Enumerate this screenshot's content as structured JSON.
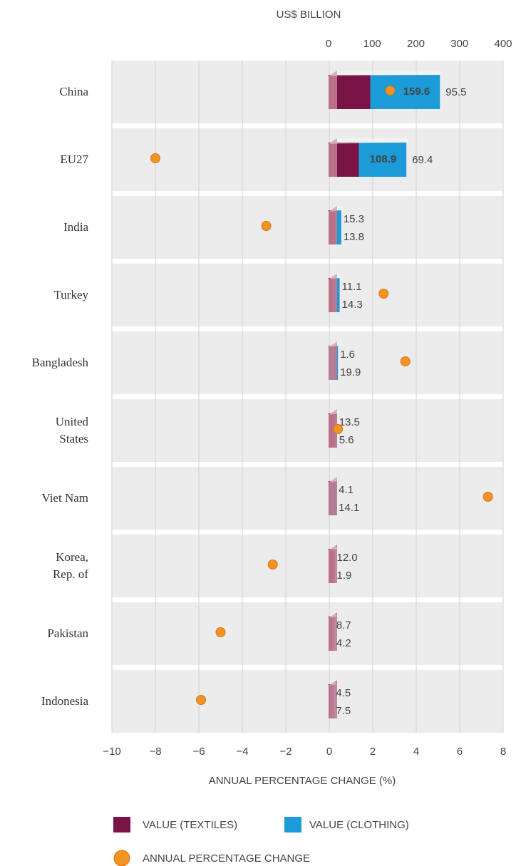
{
  "chart_data": {
    "type": "bar",
    "x_label": "US$ BILLION",
    "x2_label": "ANNUAL  PERCENTAGE CHANGE (%)",
    "categories": [
      "China",
      "EU27",
      "India",
      "Turkey",
      "Bangladesh",
      "United\nStates",
      "Viet Nam",
      "Korea,\nRep. of",
      "Pakistan",
      "Indonesia"
    ],
    "series": [
      {
        "name": "VALUE (TEXTILES)",
        "color": "#7a1446",
        "values": [
          95.5,
          69.4,
          15.3,
          11.1,
          1.6,
          13.5,
          4.1,
          12.0,
          8.7,
          4.5
        ],
        "value_labels": [
          "95.5",
          "69.4",
          "15.3",
          "11.1",
          "1.6",
          "13.5",
          "4.1",
          "12.0",
          "8.7",
          "4.5"
        ]
      },
      {
        "name": "VALUE (CLOTHING)",
        "color": "#1b9bd7",
        "values": [
          159.6,
          108.9,
          13.8,
          14.3,
          19.9,
          5.6,
          14.1,
          1.9,
          4.2,
          7.5
        ],
        "value_labels": [
          "159.6",
          "108.9",
          "13.8",
          "14.3",
          "19.9",
          "5.6",
          "14.1",
          "1.9",
          "4.2",
          "7.5"
        ]
      },
      {
        "name": "ANNUAL PERCENTAGE CHANGE",
        "color": "#f39322",
        "axis": "x2",
        "values": [
          2.8,
          -8.0,
          -2.9,
          2.5,
          3.5,
          0.4,
          7.3,
          -2.6,
          -5.0,
          -5.9
        ]
      }
    ],
    "xlim": [
      0,
      400
    ],
    "xticks": [
      0,
      100,
      200,
      300,
      400
    ],
    "x2lim": [
      -10,
      8
    ],
    "x2ticks": [
      {
        "value": -10,
        "label": "−10"
      },
      {
        "value": -8,
        "label": "−8"
      },
      {
        "value": -6,
        "label": "−6"
      },
      {
        "value": -4,
        "label": "−4"
      },
      {
        "value": -2,
        "label": "−2"
      },
      0,
      2,
      4,
      6,
      8
    ],
    "grid": true
  }
}
